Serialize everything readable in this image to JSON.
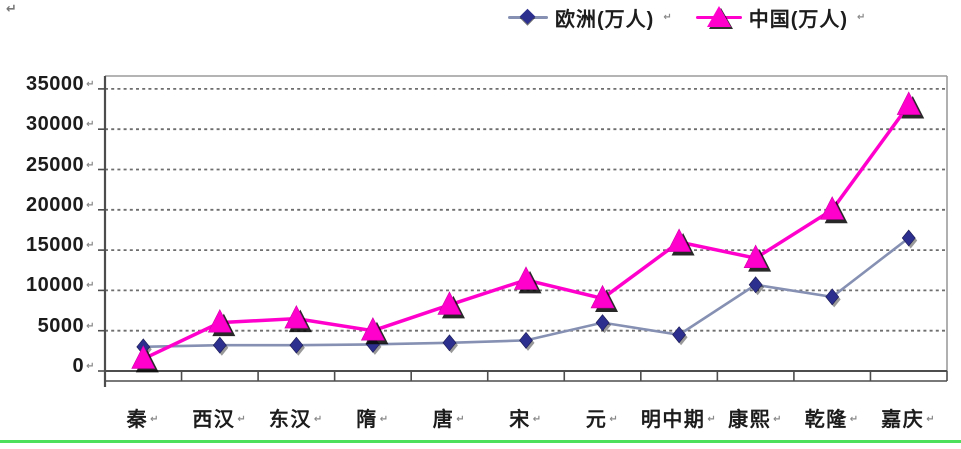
{
  "page": {
    "paragraph_mark": "↵",
    "return_mark": "↵",
    "background": "#ffffff",
    "bottom_rule_color": "#4ce05c"
  },
  "chart_data": {
    "type": "line",
    "title": "",
    "categories": [
      "秦",
      "西汉",
      "东汉",
      "隋",
      "唐",
      "宋",
      "元",
      "明中期",
      "康熙",
      "乾隆",
      "嘉庆"
    ],
    "series": [
      {
        "name": "欧洲(万人)",
        "marker": "diamond",
        "line_color": "#8590b2",
        "marker_color": "#2d2f8f",
        "values": [
          3000,
          3200,
          3200,
          3300,
          3500,
          3800,
          6000,
          4500,
          10700,
          9200,
          16500
        ]
      },
      {
        "name": "中国(万人)",
        "marker": "triangle",
        "line_color": "#ff00cc",
        "marker_color": "#ff00cc",
        "values": [
          1500,
          6000,
          6500,
          5000,
          8200,
          11300,
          9000,
          16000,
          14000,
          20000,
          33000
        ]
      }
    ],
    "xlabel": "",
    "ylabel": "",
    "ylim": [
      0,
      35000
    ],
    "ytick_step": 5000,
    "ytick_labels": [
      "0",
      "5000",
      "10000",
      "15000",
      "20000",
      "25000",
      "30000",
      "35000"
    ],
    "grid": true,
    "gridline_color": "#6e6e6e",
    "axis_color": "#4d4d4d",
    "frame_color": "#9c9c9c",
    "text_color": "#1c1c1c",
    "legend_position": "top"
  }
}
